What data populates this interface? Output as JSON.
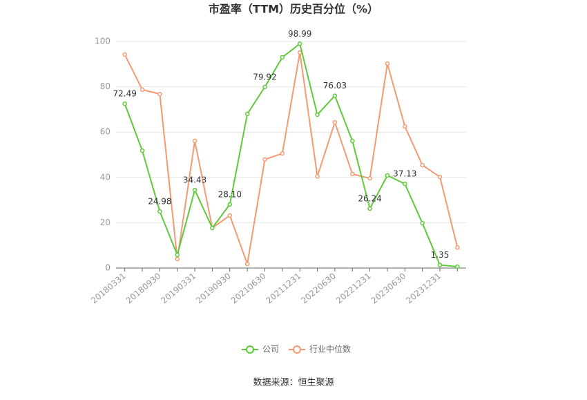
{
  "chart_data": {
    "type": "line",
    "title": "市盈率（TTM）历史百分位（%）",
    "categories": [
      "20180331",
      null,
      "20180930",
      null,
      "20190331",
      null,
      "20190930",
      null,
      "20210630",
      null,
      "20211231",
      null,
      "20220630",
      null,
      "20221231",
      null,
      "20230630",
      null,
      "20231231",
      null
    ],
    "series": [
      {
        "name": "公司",
        "color": "#5ec93a",
        "values": [
          72.49,
          51.8,
          24.98,
          5.8,
          34.43,
          17.7,
          28.1,
          68,
          79.92,
          93,
          98.99,
          67.7,
          76.03,
          56.1,
          26.24,
          40.9,
          37.13,
          19.8,
          1.35,
          0.6
        ],
        "value_labels": [
          "72.49",
          null,
          "24.98",
          null,
          "34.43",
          null,
          "28.10",
          null,
          "79.92",
          null,
          "98.99",
          null,
          "76.03",
          null,
          "26.24",
          null,
          "37.13",
          null,
          "1.35",
          null
        ]
      },
      {
        "name": "行业中位数",
        "color": "#f39a72",
        "values": [
          94.2,
          78.7,
          76.8,
          4,
          56.1,
          17.7,
          23.2,
          1.8,
          47.9,
          50.6,
          95.1,
          40.5,
          64.3,
          41.5,
          39.6,
          90.2,
          62.5,
          45.4,
          40.2,
          9.1
        ]
      }
    ],
    "ylim": [
      0,
      100
    ],
    "yticks": [
      0,
      20,
      40,
      60,
      80,
      100
    ],
    "grid": true,
    "source": "数据来源：恒生聚源"
  }
}
